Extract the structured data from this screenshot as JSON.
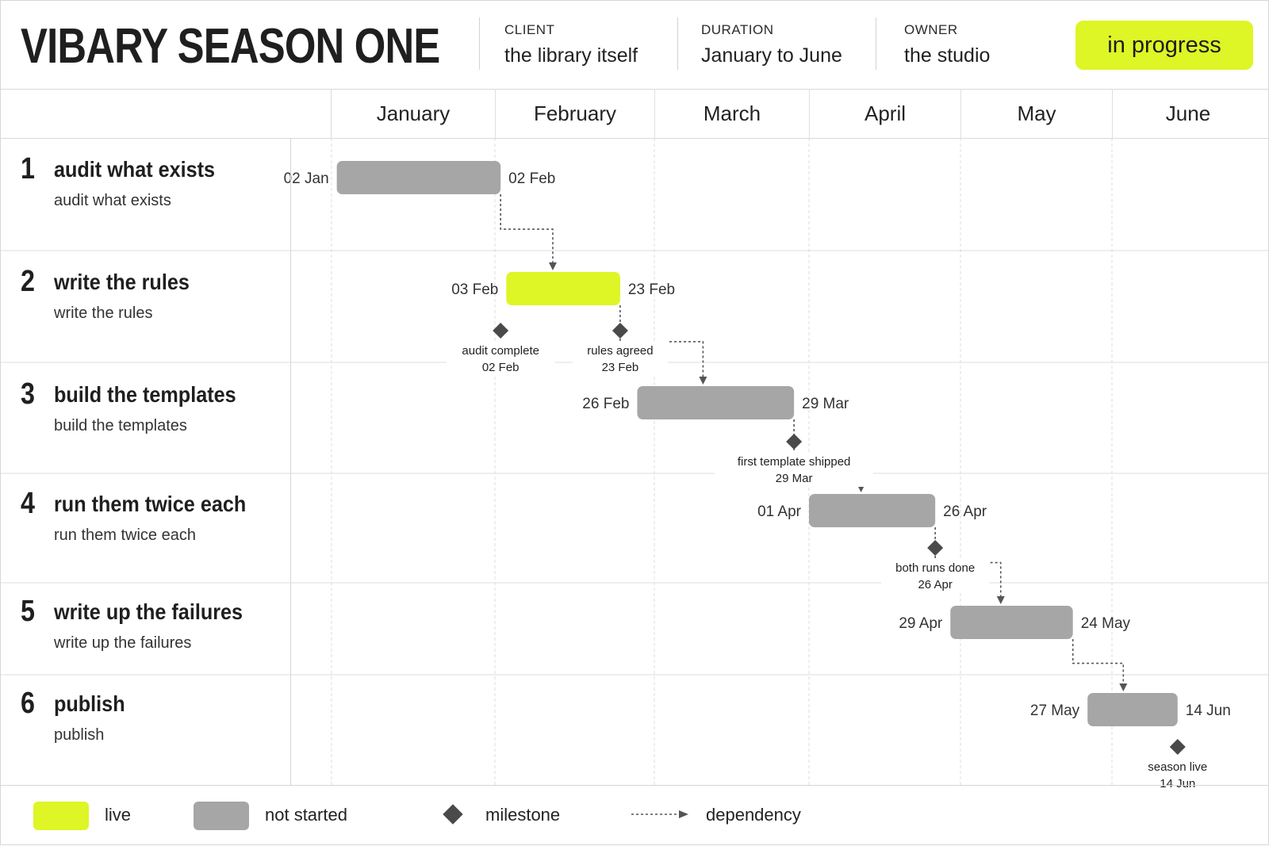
{
  "header": {
    "title": "VIBARY SEASON ONE",
    "client_label": "CLIENT",
    "client_value": "the library itself",
    "duration_label": "DURATION",
    "duration_value": "January to June",
    "owner_label": "OWNER",
    "owner_value": "the studio",
    "status": "in progress"
  },
  "colors": {
    "live": "#def526",
    "not_started": "#a6a6a6",
    "milestone": "#4a4a4a",
    "dependency": "#555555"
  },
  "chart_data": {
    "type": "gantt",
    "year_axis": "January to June",
    "months": [
      {
        "label": "January",
        "days": 31
      },
      {
        "label": "February",
        "days": 28
      },
      {
        "label": "March",
        "days": 31
      },
      {
        "label": "April",
        "days": 30
      },
      {
        "label": "May",
        "days": 31
      },
      {
        "label": "June",
        "days": 30
      }
    ],
    "tasks": [
      {
        "num": "1",
        "name": "audit what exists",
        "sub": "audit what exists",
        "start": "02 Jan",
        "end": "02 Feb",
        "start_date": "01-02",
        "end_date": "02-02",
        "status": "not started"
      },
      {
        "num": "2",
        "name": "write the rules",
        "sub": "write the rules",
        "start": "03 Feb",
        "end": "23 Feb",
        "start_date": "02-03",
        "end_date": "02-23",
        "status": "live"
      },
      {
        "num": "3",
        "name": "build the templates",
        "sub": "build the templates",
        "start": "26 Feb",
        "end": "29 Mar",
        "start_date": "02-26",
        "end_date": "03-29",
        "status": "not started"
      },
      {
        "num": "4",
        "name": "run them twice each",
        "sub": "run them twice each",
        "start": "01 Apr",
        "end": "26 Apr",
        "start_date": "04-01",
        "end_date": "04-26",
        "status": "not started"
      },
      {
        "num": "5",
        "name": "write up the failures",
        "sub": "write up the failures",
        "start": "29 Apr",
        "end": "24 May",
        "start_date": "04-29",
        "end_date": "05-24",
        "status": "not started"
      },
      {
        "num": "6",
        "name": "publish",
        "sub": "publish",
        "start": "27 May",
        "end": "14 Jun",
        "start_date": "05-27",
        "end_date": "06-14",
        "status": "not started"
      }
    ],
    "milestones": [
      {
        "label": "audit complete",
        "date_label": "02 Feb",
        "date": "02-02",
        "task": 2
      },
      {
        "label": "rules agreed",
        "date_label": "23 Feb",
        "date": "02-23",
        "task": 2
      },
      {
        "label": "first template shipped",
        "date_label": "29 Mar",
        "date": "03-29",
        "task": 3
      },
      {
        "label": "both runs done",
        "date_label": "26 Apr",
        "date": "04-26",
        "task": 4
      },
      {
        "label": "season live",
        "date_label": "14 Jun",
        "date": "06-14",
        "task": 6
      }
    ],
    "dependencies": [
      {
        "from": 1,
        "to": 2
      },
      {
        "from": 2,
        "to": 3
      },
      {
        "from": 3,
        "to": 4
      },
      {
        "from": 4,
        "to": 5
      },
      {
        "from": 5,
        "to": 6
      }
    ]
  },
  "legend": {
    "live": "live",
    "not_started": "not started",
    "milestone": "milestone",
    "dependency": "dependency"
  }
}
